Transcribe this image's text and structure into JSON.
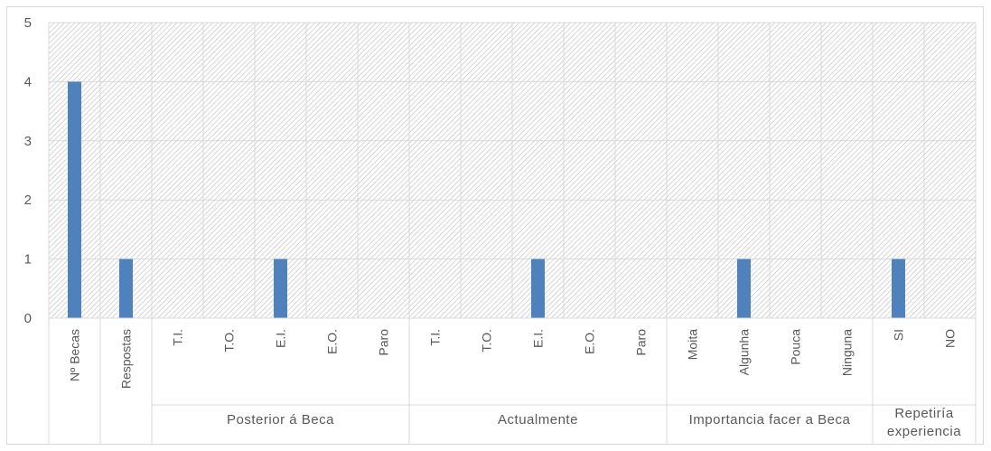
{
  "chart_data": {
    "type": "bar",
    "categories": [
      "Nº Becas",
      "Respostas",
      "T.I.",
      "T.O.",
      "E.I.",
      "E.O.",
      "Paro",
      "T.I.",
      "T.O.",
      "E.I.",
      "E.O.",
      "Paro",
      "Moita",
      "Algunha",
      "Pouca",
      "Ninguna",
      "SI",
      "NO"
    ],
    "values": [
      4,
      1,
      0,
      0,
      1,
      0,
      0,
      0,
      0,
      1,
      0,
      0,
      0,
      1,
      0,
      0,
      1,
      0
    ],
    "groups": [
      {
        "label": "",
        "lines": [
          ""
        ],
        "start": 0,
        "count": 1
      },
      {
        "label": "",
        "lines": [
          ""
        ],
        "start": 1,
        "count": 1
      },
      {
        "label": "Posterior á Beca",
        "lines": [
          "Posterior á Beca"
        ],
        "start": 2,
        "count": 5
      },
      {
        "label": "Actualmente",
        "lines": [
          "Actualmente"
        ],
        "start": 7,
        "count": 5
      },
      {
        "label": "Importancia facer a Beca",
        "lines": [
          "Importancia facer a Beca"
        ],
        "start": 12,
        "count": 4
      },
      {
        "label": "Repetiría experiencia",
        "lines": [
          "Repetiría",
          "experiencia"
        ],
        "start": 16,
        "count": 2
      }
    ],
    "yticks": [
      0,
      1,
      2,
      3,
      4,
      5
    ],
    "ylim": [
      0,
      5
    ],
    "title": "",
    "xlabel": "",
    "ylabel": "",
    "grid": true,
    "legend": "none",
    "bar_color": "#4f81bd",
    "grid_color": "#d9d9d9",
    "text_color": "#595959"
  }
}
